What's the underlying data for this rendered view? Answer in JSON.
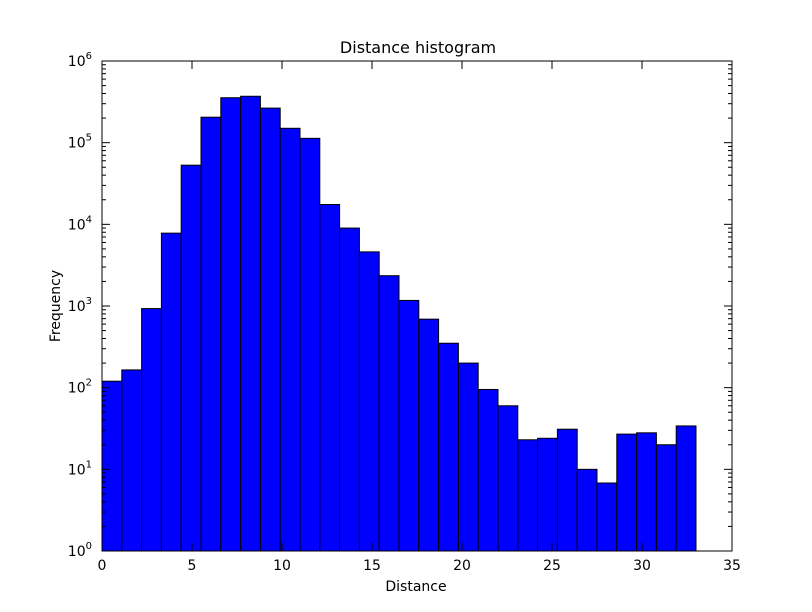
{
  "chart_data": {
    "type": "bar",
    "title": "Distance histogram",
    "xlabel": "Distance",
    "ylabel": "Frequency",
    "xlim": [
      0,
      35
    ],
    "ylim": [
      1,
      1000000
    ],
    "yscale": "log",
    "grid": false,
    "legend": "none",
    "bar_color": "#0000ff",
    "edge_color": "#000000",
    "x_ticks": [
      0,
      5,
      10,
      15,
      20,
      25,
      30,
      35
    ],
    "y_ticks": [
      {
        "base": "10",
        "exp": "0"
      },
      {
        "base": "10",
        "exp": "1"
      },
      {
        "base": "10",
        "exp": "2"
      },
      {
        "base": "10",
        "exp": "3"
      },
      {
        "base": "10",
        "exp": "4"
      },
      {
        "base": "10",
        "exp": "5"
      },
      {
        "base": "10",
        "exp": "6"
      }
    ],
    "bin_edges": [
      0,
      1.1,
      2.2,
      3.3,
      4.4,
      5.5,
      6.6,
      7.7,
      8.8,
      9.9,
      11.0,
      12.1,
      13.2,
      14.3,
      15.4,
      16.5,
      17.6,
      18.7,
      19.8,
      20.9,
      22.0,
      23.1,
      24.2,
      25.3,
      26.4,
      27.5,
      28.6,
      29.7,
      30.8,
      31.9,
      33.0
    ],
    "values": [
      120,
      165,
      930,
      7800,
      53000,
      205000,
      355000,
      370000,
      265000,
      150000,
      113000,
      17500,
      9000,
      4600,
      2350,
      1170,
      690,
      350,
      200,
      95,
      60,
      23,
      24,
      31,
      10,
      6.8,
      27,
      28,
      20,
      34
    ]
  }
}
